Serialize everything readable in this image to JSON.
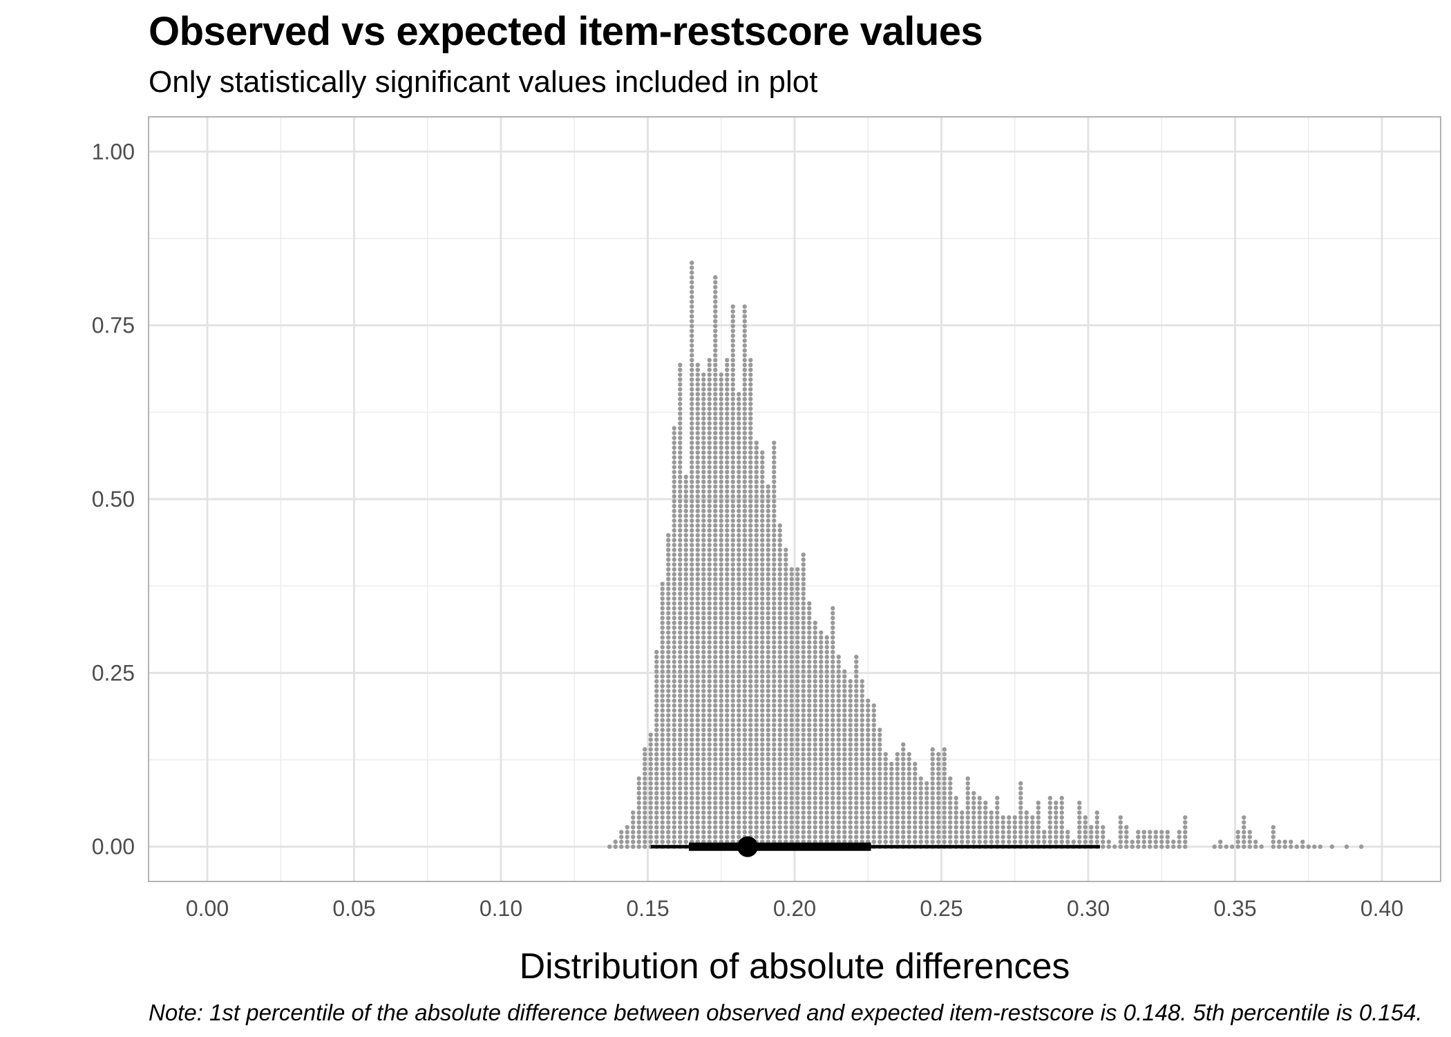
{
  "chart_data": {
    "type": "dotplot",
    "title": "Observed vs expected item-restscore values",
    "subtitle": "Only statistically significant values included in plot",
    "xlabel": "Distribution of absolute differences",
    "ylabel": "",
    "note": "Note: 1st percentile of the absolute difference between observed and expected item-restscore is 0.148. 5th percentile is 0.154.",
    "xlim": [
      -0.02,
      0.42
    ],
    "ylim": [
      -0.05,
      1.05
    ],
    "x_ticks": [
      "0.00",
      "0.05",
      "0.10",
      "0.15",
      "0.20",
      "0.25",
      "0.30",
      "0.35",
      "0.40"
    ],
    "y_ticks": [
      "0.00",
      "0.25",
      "0.50",
      "0.75",
      "1.00"
    ],
    "grid": true,
    "legend": "none",
    "dot_color": "#999999",
    "summary_color": "#000000",
    "dot_bin_width": 0.002,
    "dot_spacing_y": 0.007,
    "bins": [
      {
        "x": 0.137,
        "y": 0.0
      },
      {
        "x": 0.139,
        "y": 0.01
      },
      {
        "x": 0.141,
        "y": 0.02
      },
      {
        "x": 0.143,
        "y": 0.03
      },
      {
        "x": 0.145,
        "y": 0.05
      },
      {
        "x": 0.147,
        "y": 0.1
      },
      {
        "x": 0.149,
        "y": 0.14
      },
      {
        "x": 0.151,
        "y": 0.16
      },
      {
        "x": 0.153,
        "y": 0.28
      },
      {
        "x": 0.155,
        "y": 0.38
      },
      {
        "x": 0.157,
        "y": 0.45
      },
      {
        "x": 0.159,
        "y": 0.6
      },
      {
        "x": 0.161,
        "y": 0.69
      },
      {
        "x": 0.163,
        "y": 0.53
      },
      {
        "x": 0.165,
        "y": 0.84
      },
      {
        "x": 0.167,
        "y": 0.69
      },
      {
        "x": 0.169,
        "y": 0.68
      },
      {
        "x": 0.171,
        "y": 0.7
      },
      {
        "x": 0.173,
        "y": 0.82
      },
      {
        "x": 0.175,
        "y": 0.68
      },
      {
        "x": 0.177,
        "y": 0.7
      },
      {
        "x": 0.179,
        "y": 0.78
      },
      {
        "x": 0.181,
        "y": 0.65
      },
      {
        "x": 0.183,
        "y": 0.78
      },
      {
        "x": 0.185,
        "y": 0.7
      },
      {
        "x": 0.187,
        "y": 0.58
      },
      {
        "x": 0.189,
        "y": 0.57
      },
      {
        "x": 0.191,
        "y": 0.52
      },
      {
        "x": 0.193,
        "y": 0.58
      },
      {
        "x": 0.195,
        "y": 0.46
      },
      {
        "x": 0.197,
        "y": 0.43
      },
      {
        "x": 0.199,
        "y": 0.4
      },
      {
        "x": 0.201,
        "y": 0.4
      },
      {
        "x": 0.203,
        "y": 0.42
      },
      {
        "x": 0.205,
        "y": 0.35
      },
      {
        "x": 0.207,
        "y": 0.32
      },
      {
        "x": 0.209,
        "y": 0.31
      },
      {
        "x": 0.211,
        "y": 0.3
      },
      {
        "x": 0.213,
        "y": 0.34
      },
      {
        "x": 0.215,
        "y": 0.27
      },
      {
        "x": 0.217,
        "y": 0.25
      },
      {
        "x": 0.219,
        "y": 0.24
      },
      {
        "x": 0.221,
        "y": 0.27
      },
      {
        "x": 0.223,
        "y": 0.24
      },
      {
        "x": 0.225,
        "y": 0.21
      },
      {
        "x": 0.227,
        "y": 0.2
      },
      {
        "x": 0.229,
        "y": 0.17
      },
      {
        "x": 0.231,
        "y": 0.13
      },
      {
        "x": 0.233,
        "y": 0.12
      },
      {
        "x": 0.235,
        "y": 0.13
      },
      {
        "x": 0.237,
        "y": 0.15
      },
      {
        "x": 0.239,
        "y": 0.13
      },
      {
        "x": 0.241,
        "y": 0.12
      },
      {
        "x": 0.243,
        "y": 0.1
      },
      {
        "x": 0.245,
        "y": 0.09
      },
      {
        "x": 0.247,
        "y": 0.14
      },
      {
        "x": 0.249,
        "y": 0.13
      },
      {
        "x": 0.251,
        "y": 0.14
      },
      {
        "x": 0.253,
        "y": 0.1
      },
      {
        "x": 0.255,
        "y": 0.07
      },
      {
        "x": 0.257,
        "y": 0.05
      },
      {
        "x": 0.259,
        "y": 0.1
      },
      {
        "x": 0.261,
        "y": 0.08
      },
      {
        "x": 0.263,
        "y": 0.07
      },
      {
        "x": 0.265,
        "y": 0.06
      },
      {
        "x": 0.267,
        "y": 0.05
      },
      {
        "x": 0.269,
        "y": 0.07
      },
      {
        "x": 0.271,
        "y": 0.04
      },
      {
        "x": 0.273,
        "y": 0.04
      },
      {
        "x": 0.275,
        "y": 0.04
      },
      {
        "x": 0.277,
        "y": 0.09
      },
      {
        "x": 0.279,
        "y": 0.05
      },
      {
        "x": 0.281,
        "y": 0.04
      },
      {
        "x": 0.283,
        "y": 0.06
      },
      {
        "x": 0.285,
        "y": 0.02
      },
      {
        "x": 0.287,
        "y": 0.07
      },
      {
        "x": 0.289,
        "y": 0.06
      },
      {
        "x": 0.291,
        "y": 0.07
      },
      {
        "x": 0.293,
        "y": 0.02
      },
      {
        "x": 0.295,
        "y": 0.01
      },
      {
        "x": 0.297,
        "y": 0.06
      },
      {
        "x": 0.299,
        "y": 0.04
      },
      {
        "x": 0.301,
        "y": 0.03
      },
      {
        "x": 0.303,
        "y": 0.05
      },
      {
        "x": 0.305,
        "y": 0.03
      },
      {
        "x": 0.307,
        "y": 0.01
      },
      {
        "x": 0.309,
        "y": 0.0
      },
      {
        "x": 0.311,
        "y": 0.04
      },
      {
        "x": 0.313,
        "y": 0.03
      },
      {
        "x": 0.315,
        "y": 0.01
      },
      {
        "x": 0.317,
        "y": 0.02
      },
      {
        "x": 0.319,
        "y": 0.02
      },
      {
        "x": 0.321,
        "y": 0.02
      },
      {
        "x": 0.323,
        "y": 0.02
      },
      {
        "x": 0.325,
        "y": 0.02
      },
      {
        "x": 0.327,
        "y": 0.02
      },
      {
        "x": 0.329,
        "y": 0.01
      },
      {
        "x": 0.331,
        "y": 0.02
      },
      {
        "x": 0.333,
        "y": 0.04
      },
      {
        "x": 0.343,
        "y": 0.0
      },
      {
        "x": 0.345,
        "y": 0.01
      },
      {
        "x": 0.347,
        "y": 0.0
      },
      {
        "x": 0.349,
        "y": 0.0
      },
      {
        "x": 0.351,
        "y": 0.02
      },
      {
        "x": 0.353,
        "y": 0.04
      },
      {
        "x": 0.355,
        "y": 0.02
      },
      {
        "x": 0.357,
        "y": 0.01
      },
      {
        "x": 0.359,
        "y": 0.0
      },
      {
        "x": 0.363,
        "y": 0.03
      },
      {
        "x": 0.365,
        "y": 0.01
      },
      {
        "x": 0.367,
        "y": 0.01
      },
      {
        "x": 0.369,
        "y": 0.01
      },
      {
        "x": 0.371,
        "y": 0.0
      },
      {
        "x": 0.373,
        "y": 0.01
      },
      {
        "x": 0.375,
        "y": 0.0
      },
      {
        "x": 0.377,
        "y": 0.0
      },
      {
        "x": 0.379,
        "y": 0.0
      },
      {
        "x": 0.383,
        "y": 0.0
      },
      {
        "x": 0.388,
        "y": 0.0
      },
      {
        "x": 0.393,
        "y": 0.0
      }
    ],
    "summary": {
      "point": 0.184,
      "interval_inner": [
        0.164,
        0.226
      ],
      "interval_outer": [
        0.151,
        0.304
      ],
      "y": 0.0
    }
  }
}
